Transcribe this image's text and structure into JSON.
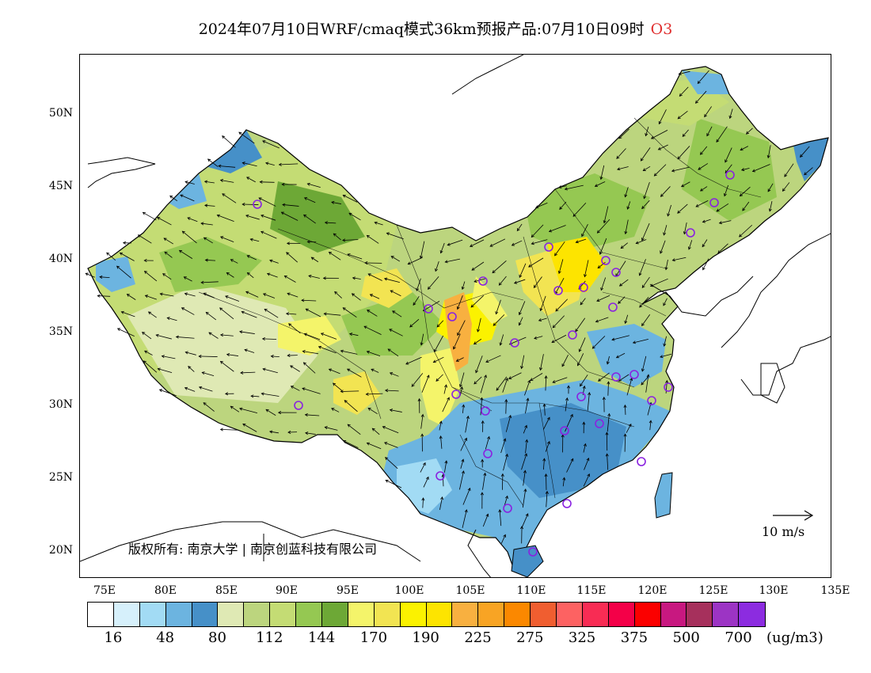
{
  "title": {
    "text": "2024年07月10日WRF/cmaq模式36km预报产品:07月10日09时",
    "variable": "O3"
  },
  "axes": {
    "lat_labels": [
      "50N",
      "45N",
      "40N",
      "35N",
      "30N",
      "25N",
      "20N"
    ],
    "lon_labels": [
      "75E",
      "80E",
      "85E",
      "90E",
      "95E",
      "100E",
      "105E",
      "110E",
      "115E",
      "120E",
      "125E",
      "130E",
      "135E"
    ]
  },
  "copyright": "版权所有: 南京大学 | 南京创蓝科技有限公司",
  "wind_scale": {
    "label": "10 m/s"
  },
  "legend": {
    "colors": [
      "#ffffff",
      "#d6f0fb",
      "#a2dbf4",
      "#6cb4e0",
      "#4690c8",
      "#dfe9b4",
      "#bcd57e",
      "#c4dc74",
      "#95c852",
      "#6da836",
      "#f4f46a",
      "#f2e452",
      "#fbf200",
      "#fde400",
      "#f8b040",
      "#f8a424",
      "#fb8800",
      "#f05e30",
      "#fd6262",
      "#f82c54",
      "#f40048",
      "#fb0000",
      "#c81880",
      "#a6305c",
      "#9c34c4",
      "#8c2ce0"
    ],
    "labels": [
      "16",
      "48",
      "80",
      "112",
      "144",
      "170",
      "190",
      "225",
      "275",
      "325",
      "375",
      "500",
      "700"
    ],
    "unit": "(ug/m3)"
  }
}
